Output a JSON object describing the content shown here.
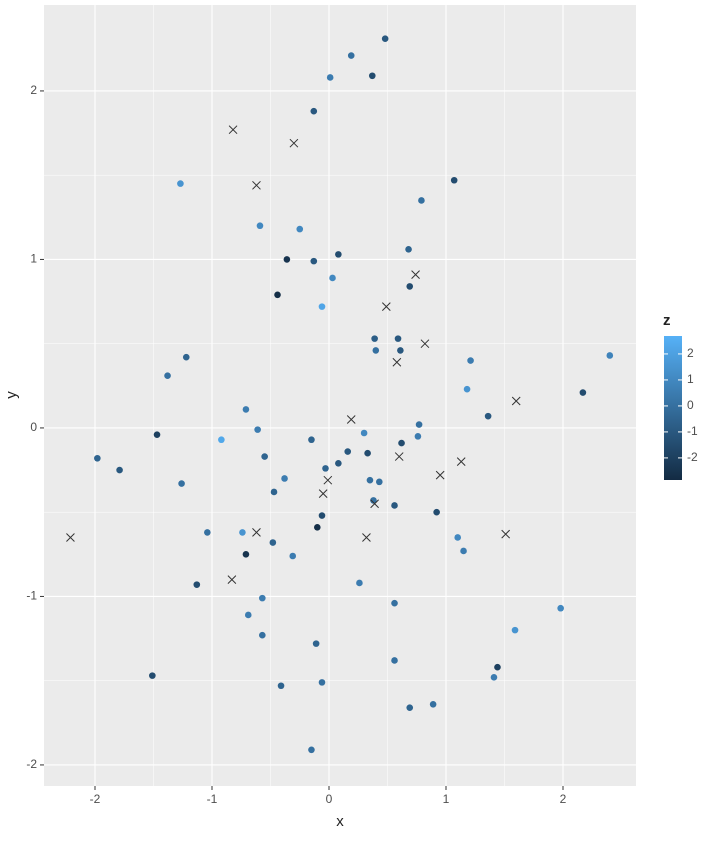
{
  "chart_data": {
    "type": "scatter",
    "x_label": "x",
    "y_label": "y",
    "xlim": [
      -2.436,
      2.624
    ],
    "ylim": [
      -2.125,
      2.51
    ],
    "xticks": [
      -2,
      -1,
      0,
      1,
      2
    ],
    "yticks": [
      -2,
      -1,
      0,
      1,
      2
    ],
    "grid": true,
    "legend": {
      "title": "z",
      "position": "right",
      "zlim": [
        -2.85,
        2.69
      ],
      "ticks": [
        -2,
        -1,
        0,
        1,
        2
      ],
      "low_color": "#132B43",
      "high_color": "#56B1F7"
    },
    "missing_marker": "cross",
    "missing_color": "#333333",
    "x": [
      0.48,
      0.19,
      0.01,
      0.37,
      -0.13,
      -1.27,
      1.07,
      0.79,
      -0.59,
      -0.25,
      0.68,
      0.08,
      -0.36,
      -0.13,
      0.03,
      0.69,
      -0.44,
      -0.06,
      0.39,
      0.59,
      0.4,
      0.61,
      -1.22,
      1.21,
      2.4,
      -1.38,
      1.18,
      2.17,
      1.36,
      -0.71,
      0.77,
      -0.61,
      -1.47,
      0.3,
      -0.92,
      0.76,
      -0.15,
      0.62,
      -1.98,
      -0.55,
      0.16,
      0.33,
      -1.79,
      0.08,
      -0.03,
      -0.38,
      0.35,
      0.43,
      -1.26,
      -0.47,
      0.38,
      0.56,
      0.92,
      -0.06,
      -0.1,
      -1.04,
      -0.74,
      1.1,
      -0.48,
      -0.71,
      1.15,
      -0.31,
      -1.13,
      0.26,
      -0.57,
      0.56,
      -0.69,
      1.98,
      -0.57,
      1.59,
      -0.11,
      -1.51,
      0.56,
      1.44,
      1.41,
      -0.06,
      -0.41,
      0.89,
      0.69,
      -0.15,
      -0.82,
      -0.3,
      -0.62,
      0.74,
      0.49,
      0.82,
      0.58,
      1.6,
      0.19,
      0.6,
      1.13,
      0.95,
      -0.01,
      -0.05,
      0.39,
      -0.62,
      0.32,
      1.51,
      -2.21,
      -0.83
    ],
    "y": [
      2.31,
      2.21,
      2.08,
      2.09,
      1.88,
      1.45,
      1.47,
      1.35,
      1.2,
      1.18,
      1.06,
      1.03,
      1.0,
      0.99,
      0.89,
      0.84,
      0.79,
      0.72,
      0.53,
      0.53,
      0.46,
      0.46,
      0.42,
      0.4,
      0.43,
      0.31,
      0.23,
      0.21,
      0.07,
      0.11,
      0.02,
      -0.01,
      -0.04,
      -0.03,
      -0.07,
      -0.05,
      -0.07,
      -0.09,
      -0.18,
      -0.17,
      -0.14,
      -0.15,
      -0.25,
      -0.21,
      -0.24,
      -0.3,
      -0.31,
      -0.32,
      -0.33,
      -0.38,
      -0.43,
      -0.46,
      -0.5,
      -0.52,
      -0.59,
      -0.62,
      -0.62,
      -0.65,
      -0.68,
      -0.75,
      -0.73,
      -0.76,
      -0.93,
      -0.92,
      -1.01,
      -1.04,
      -1.11,
      -1.07,
      -1.23,
      -1.2,
      -1.28,
      -1.47,
      -1.38,
      -1.42,
      -1.48,
      -1.51,
      -1.53,
      -1.64,
      -1.66,
      -1.91,
      1.77,
      1.69,
      1.44,
      0.91,
      0.72,
      0.5,
      0.39,
      0.16,
      0.05,
      -0.17,
      -0.2,
      -0.28,
      -0.31,
      -0.39,
      -0.45,
      -0.62,
      -0.65,
      -0.63,
      -0.65,
      -0.9
    ],
    "z": [
      -1,
      0,
      0.5,
      -1.5,
      -1,
      1.5,
      -1.5,
      0,
      1,
      1,
      -0.5,
      -1.5,
      -2.5,
      -1,
      1,
      -1.5,
      -2.7,
      2.2,
      -0.8,
      -1,
      0,
      -1,
      -0.5,
      0.5,
      0.8,
      0,
      1.5,
      -1.5,
      -1,
      0.5,
      0,
      0.5,
      -2,
      1,
      2.3,
      0.5,
      -0.5,
      -1.5,
      -0.5,
      -0.5,
      -1,
      -1.5,
      -1,
      -1,
      -0.5,
      0.5,
      0,
      0,
      0,
      -0.5,
      0,
      -1,
      -1.5,
      -1.5,
      -2.7,
      0,
      1.5,
      1,
      -0.5,
      -2.5,
      0.5,
      0.5,
      -1.5,
      0.5,
      0.5,
      0,
      0.5,
      1,
      0,
      1.5,
      -0.5,
      -1.5,
      0,
      -2,
      0.5,
      0,
      -0.5,
      0,
      -0.5,
      0,
      null,
      null,
      null,
      null,
      null,
      null,
      null,
      null,
      null,
      null,
      null,
      null,
      null,
      null,
      null,
      null,
      null,
      null,
      null,
      null
    ]
  }
}
